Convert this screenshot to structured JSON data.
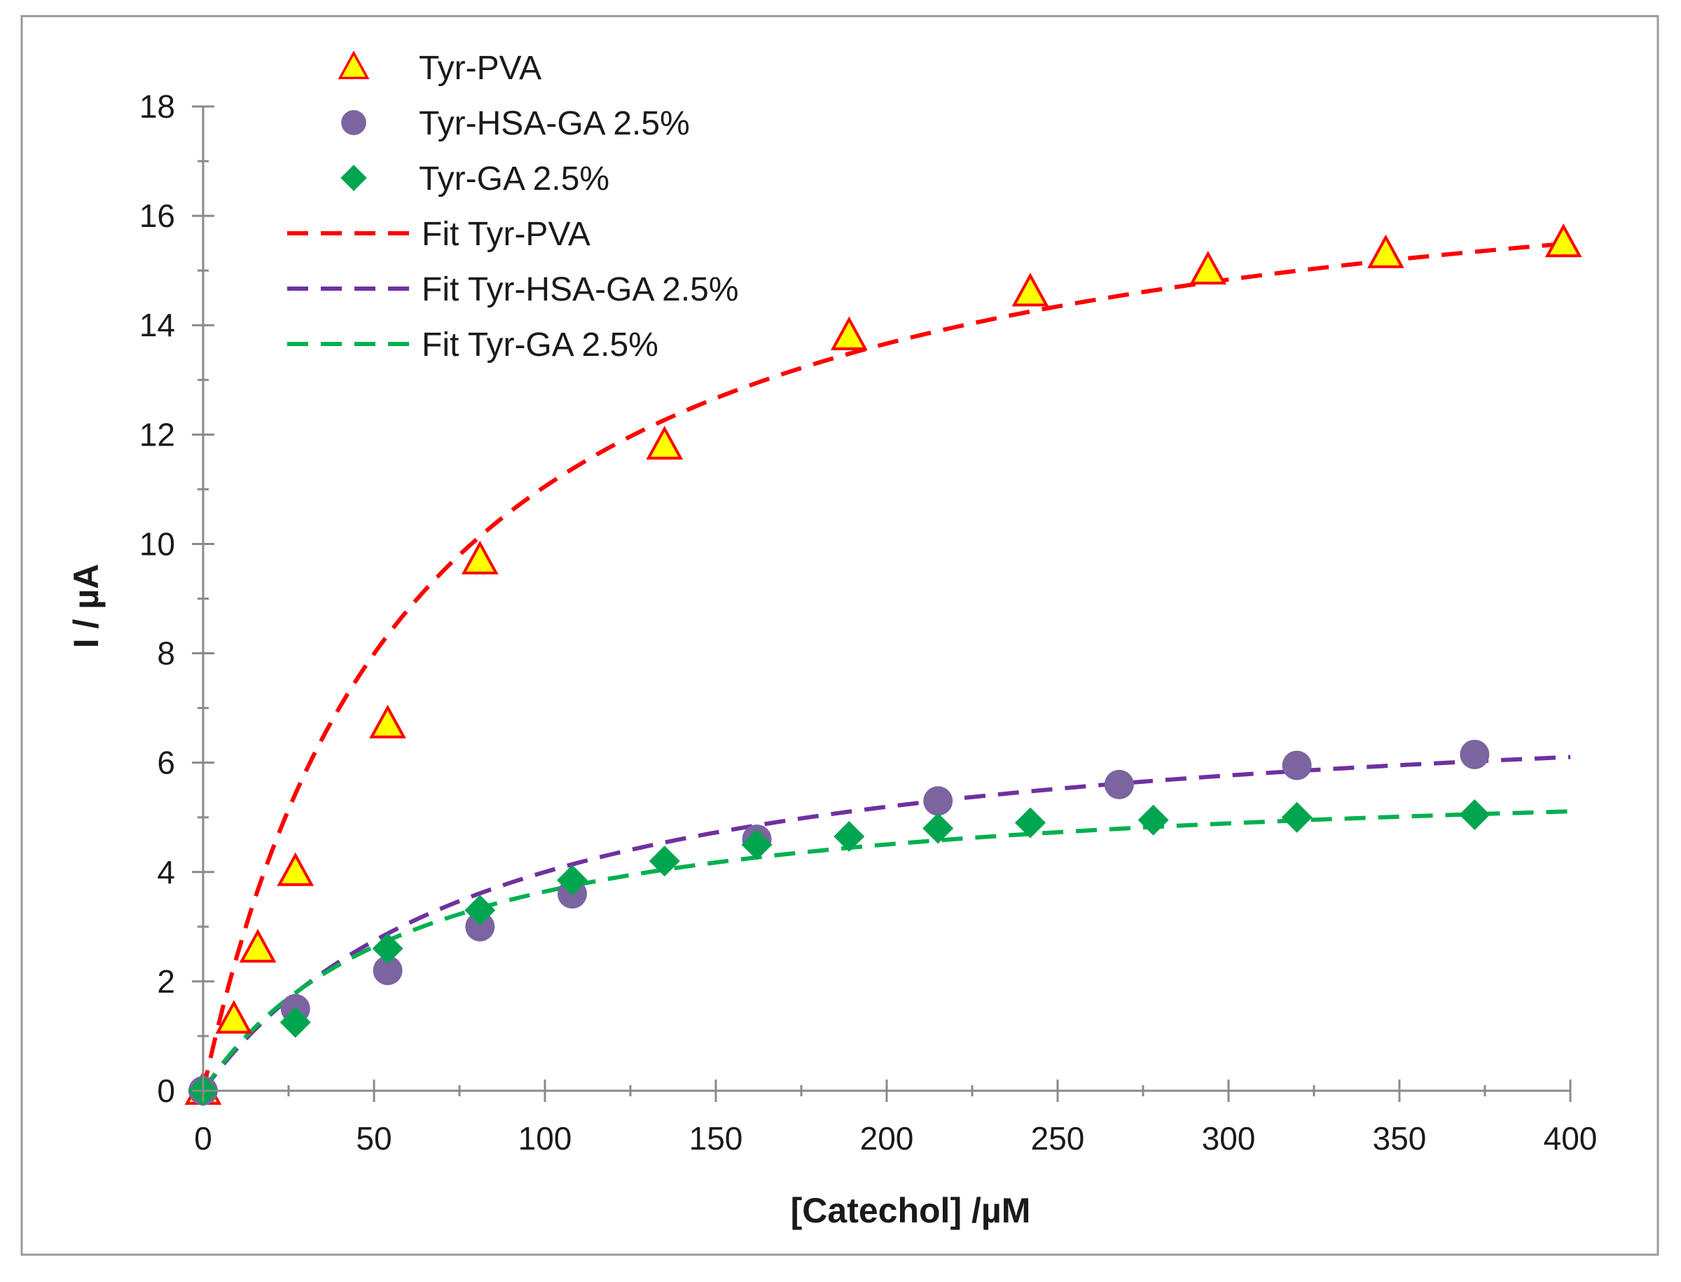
{
  "chart_data": {
    "type": "scatter",
    "title": "",
    "xlabel": "[Catechol] /µM",
    "ylabel": "I / µA",
    "xlim": [
      0,
      400
    ],
    "ylim": [
      0,
      18
    ],
    "x_ticks": [
      0,
      50,
      100,
      150,
      200,
      250,
      300,
      350,
      400
    ],
    "y_ticks": [
      0,
      2,
      4,
      6,
      8,
      10,
      12,
      14,
      16,
      18
    ],
    "x_tick_labels": [
      "0",
      "50",
      "100",
      "150",
      "200",
      "250",
      "300",
      "350",
      "400"
    ],
    "y_tick_labels": [
      "0",
      "2",
      "4",
      "6",
      "8",
      "10",
      "12",
      "14",
      "16",
      "18"
    ],
    "grid": false,
    "legend_position": "top-left",
    "series": [
      {
        "name": "Tyr-PVA",
        "kind": "points",
        "marker": "triangle",
        "color": "#ff0000",
        "fill": "#ffff00",
        "x": [
          0,
          9,
          16,
          27,
          54,
          81,
          135,
          189,
          242,
          294,
          346,
          398
        ],
        "y": [
          0,
          1.3,
          2.6,
          4.0,
          6.7,
          9.7,
          11.8,
          13.8,
          14.6,
          15.0,
          15.3,
          15.5
        ]
      },
      {
        "name": "Tyr-HSA-GA 2.5%",
        "kind": "points",
        "marker": "circle",
        "color": "#7b64a0",
        "x": [
          0,
          27,
          54,
          81,
          108,
          162,
          215,
          268,
          320,
          372
        ],
        "y": [
          0,
          1.5,
          2.2,
          3.0,
          3.6,
          4.6,
          5.3,
          5.6,
          5.95,
          6.15
        ]
      },
      {
        "name": "Tyr-GA 2.5%",
        "kind": "points",
        "marker": "diamond",
        "color": "#00a550",
        "x": [
          0,
          27,
          54,
          81,
          108,
          135,
          162,
          189,
          215,
          242,
          278,
          320,
          372
        ],
        "y": [
          0,
          1.25,
          2.6,
          3.3,
          3.85,
          4.2,
          4.5,
          4.65,
          4.8,
          4.9,
          4.95,
          5.0,
          5.05
        ]
      },
      {
        "name": "Fit Tyr-PVA",
        "kind": "fit",
        "model": "michaelis-menten",
        "imax": 17.9,
        "km": 62,
        "color": "#ff0000",
        "x_range": [
          0,
          400
        ]
      },
      {
        "name": "Fit Tyr-HSA-GA 2.5%",
        "kind": "fit",
        "model": "michaelis-menten",
        "imax": 7.4,
        "km": 85,
        "color": "#7030a0",
        "x_range": [
          0,
          400
        ]
      },
      {
        "name": "Fit Tyr-GA 2.5%",
        "kind": "fit",
        "model": "michaelis-menten",
        "imax": 5.9,
        "km": 62,
        "color": "#00b050",
        "x_range": [
          0,
          400
        ]
      }
    ]
  }
}
